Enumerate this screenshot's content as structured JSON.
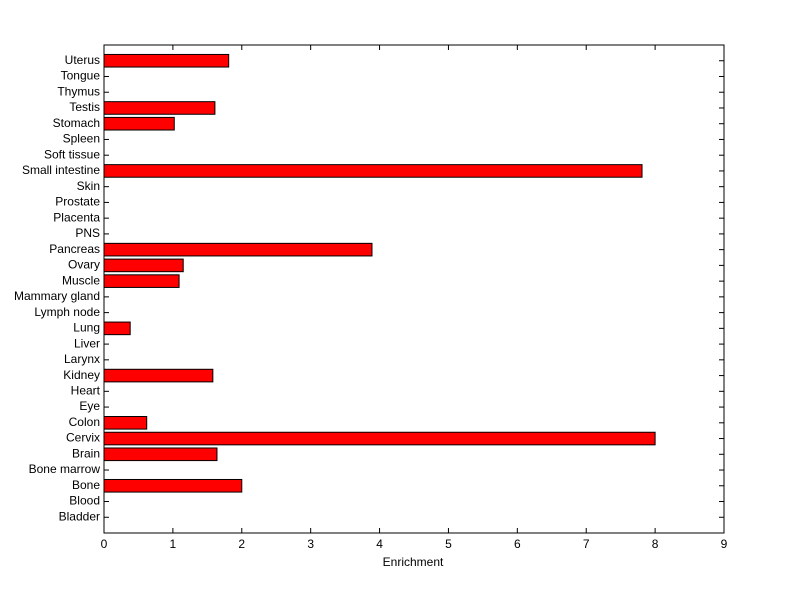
{
  "chart_data": {
    "type": "barh",
    "x_label": "Enrichment",
    "categories": [
      "Bladder",
      "Blood",
      "Bone",
      "Bone marrow",
      "Brain",
      "Cervix",
      "Colon",
      "Eye",
      "Heart",
      "Kidney",
      "Larynx",
      "Liver",
      "Lung",
      "Lymph node",
      "Mammary gland",
      "Muscle",
      "Ovary",
      "Pancreas",
      "PNS",
      "Placenta",
      "Prostate",
      "Skin",
      "Small intestine",
      "Soft tissue",
      "Spleen",
      "Stomach",
      "Testis",
      "Thymus",
      "Tongue",
      "Uterus"
    ],
    "values": [
      0,
      0,
      2.0,
      0,
      1.64,
      8.0,
      0.62,
      0,
      0,
      1.58,
      0,
      0,
      0.38,
      0,
      0,
      1.09,
      1.15,
      3.89,
      0,
      0,
      0,
      0,
      7.81,
      0,
      0,
      1.02,
      1.61,
      0,
      0,
      1.81
    ],
    "color": "#ff0000",
    "xlim": [
      0,
      9
    ],
    "xticks": [
      0,
      1,
      2,
      3,
      4,
      5,
      6,
      7,
      8,
      9
    ],
    "grid": false
  }
}
